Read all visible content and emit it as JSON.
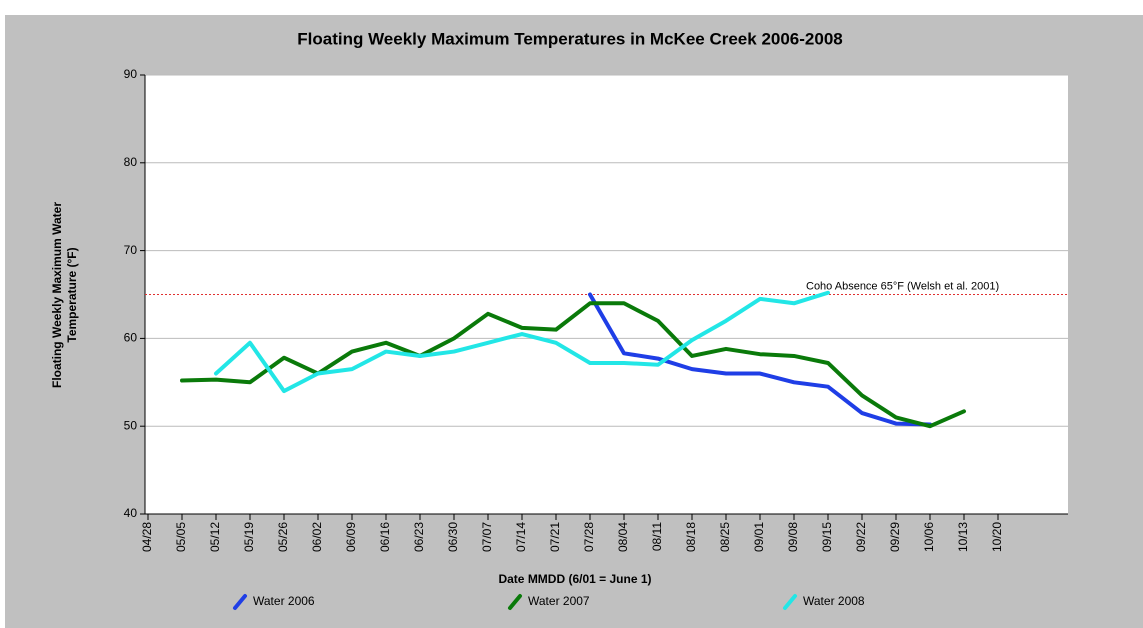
{
  "chart_data": {
    "type": "line",
    "title": "Floating Weekly Maximum Temperatures in McKee Creek 2006-2008",
    "xlabel": "Date MMDD (6/01 = June 1)",
    "ylabel": [
      "Floating Weekly Maximum Water",
      "Temperature (°F)"
    ],
    "categories": [
      "04/28",
      "05/05",
      "05/12",
      "05/19",
      "05/26",
      "06/02",
      "06/09",
      "06/16",
      "06/23",
      "06/30",
      "07/07",
      "07/14",
      "07/21",
      "07/28",
      "08/04",
      "08/11",
      "08/18",
      "08/25",
      "09/01",
      "09/08",
      "09/15",
      "09/22",
      "09/29",
      "10/06",
      "10/13",
      "10/20"
    ],
    "series": [
      {
        "name": "Water 2006",
        "color": "#1f3ee6",
        "values": [
          null,
          null,
          null,
          null,
          null,
          null,
          null,
          null,
          null,
          null,
          null,
          null,
          null,
          65,
          58.3,
          57.7,
          56.5,
          56,
          56,
          55,
          54.5,
          51.5,
          50.3,
          50.2,
          null,
          null
        ]
      },
      {
        "name": "Water 2007",
        "color": "#0a7a0a",
        "values": [
          null,
          55.2,
          55.3,
          55,
          57.8,
          56,
          58.5,
          59.5,
          58,
          60,
          62.8,
          61.2,
          61,
          64,
          64,
          62,
          58,
          58.8,
          58.2,
          58,
          57.2,
          53.5,
          51,
          50,
          51.7,
          null
        ]
      },
      {
        "name": "Water 2008",
        "color": "#22e6e6",
        "values": [
          null,
          null,
          56,
          59.5,
          54,
          56,
          56.5,
          58.5,
          58,
          58.5,
          59.5,
          60.5,
          59.5,
          57.2,
          57.2,
          57,
          59.8,
          62,
          64.5,
          64,
          65.2,
          null,
          null,
          null,
          null,
          null
        ]
      }
    ],
    "reference_line": {
      "value": 65,
      "label": "Coho Absence 65°F (Welsh et al. 2001)",
      "color": "#e03030"
    },
    "ylim": [
      40,
      90
    ],
    "yticks": [
      40,
      50,
      60,
      70,
      80,
      90
    ],
    "grid": true,
    "legend": "bottom"
  }
}
